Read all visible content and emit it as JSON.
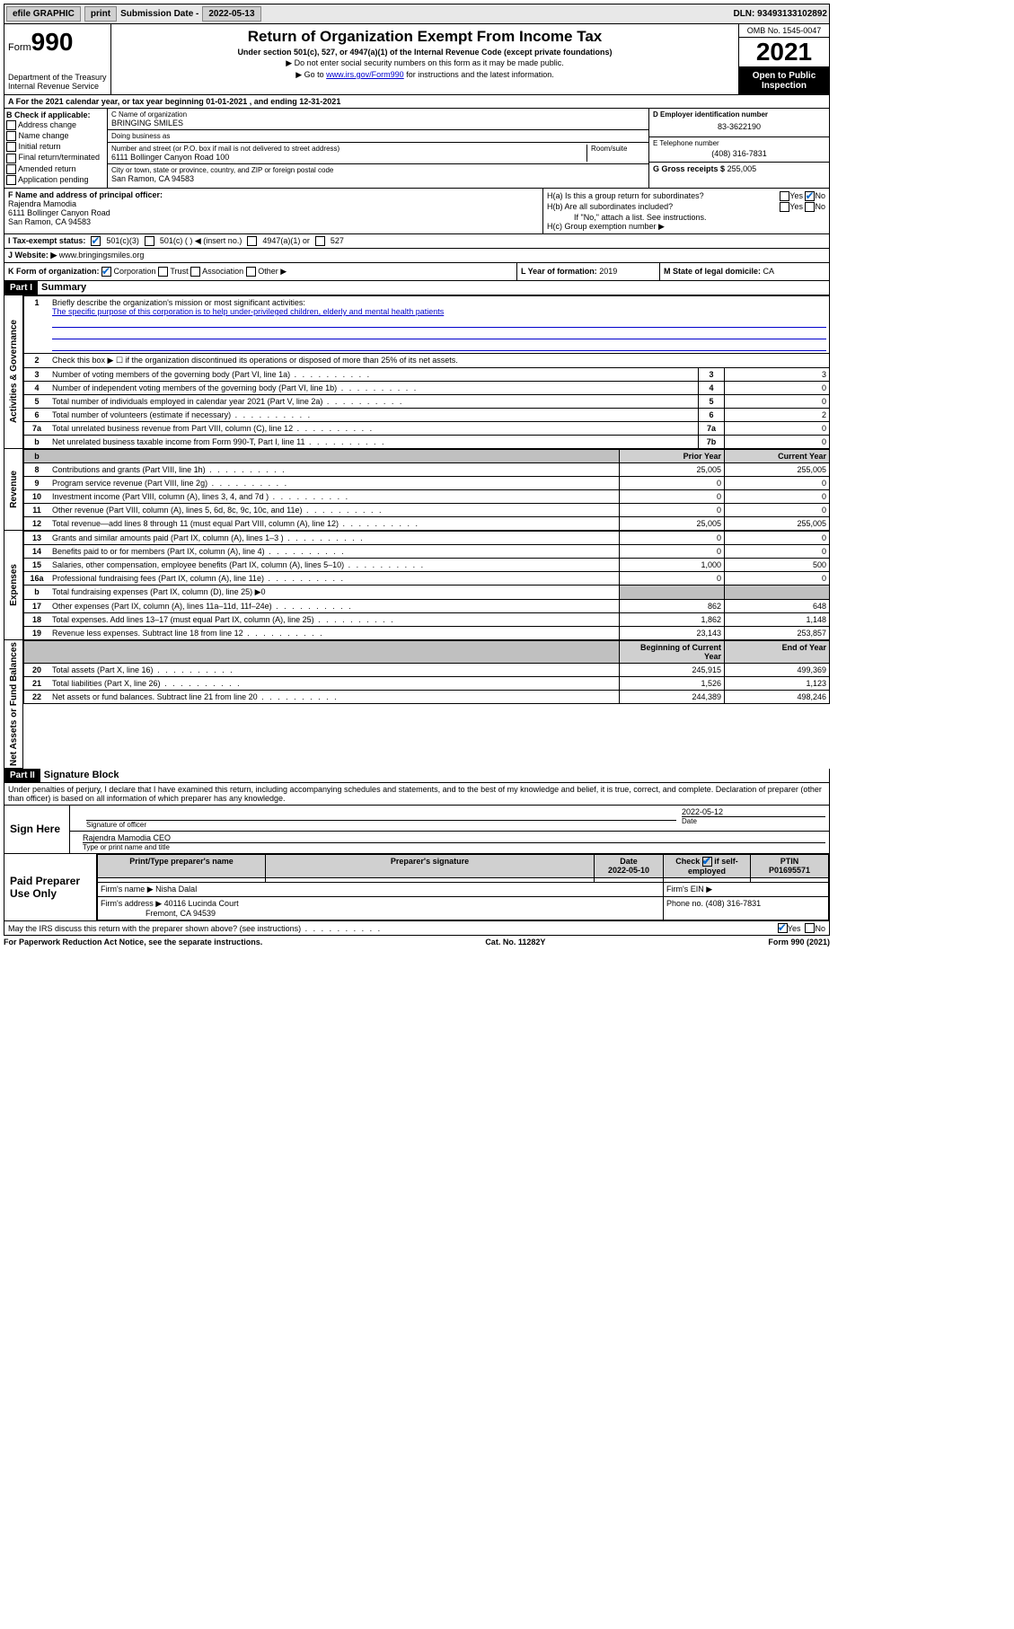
{
  "topbar": {
    "efile": "efile GRAPHIC",
    "print": "print",
    "sub_label": "Submission Date - ",
    "sub_date": "2022-05-13",
    "dln": "DLN: 93493133102892"
  },
  "header": {
    "form_word": "Form",
    "form_num": "990",
    "dept": "Department of the Treasury",
    "irs": "Internal Revenue Service",
    "title": "Return of Organization Exempt From Income Tax",
    "sub1": "Under section 501(c), 527, or 4947(a)(1) of the Internal Revenue Code (except private foundations)",
    "sub2": "▶ Do not enter social security numbers on this form as it may be made public.",
    "sub3_pre": "▶ Go to ",
    "sub3_link": "www.irs.gov/Form990",
    "sub3_post": " for instructions and the latest information.",
    "omb": "OMB No. 1545-0047",
    "year": "2021",
    "open": "Open to Public Inspection"
  },
  "row_a": "A For the 2021 calendar year, or tax year beginning 01-01-2021   , and ending 12-31-2021",
  "b": {
    "title": "B Check if applicable:",
    "opts": [
      "Address change",
      "Name change",
      "Initial return",
      "Final return/terminated",
      "Amended return",
      "Application pending"
    ]
  },
  "c": {
    "name_label": "C Name of organization",
    "name": "BRINGING SMILES",
    "dba_label": "Doing business as",
    "dba": "",
    "street_label": "Number and street (or P.O. box if mail is not delivered to street address)",
    "room_label": "Room/suite",
    "street": "6111 Bollinger Canyon Road 100",
    "city_label": "City or town, state or province, country, and ZIP or foreign postal code",
    "city": "San Ramon, CA  94583"
  },
  "d": {
    "label": "D Employer identification number",
    "val": "83-3622190"
  },
  "e": {
    "label": "E Telephone number",
    "val": "(408) 316-7831"
  },
  "g": {
    "label": "G Gross receipts $",
    "val": "255,005"
  },
  "f": {
    "label": "F Name and address of principal officer:",
    "name": "Rajendra Mamodia",
    "addr1": "6111 Bollinger Canyon Road",
    "addr2": "San Ramon, CA  94583"
  },
  "h": {
    "a": "H(a)  Is this a group return for subordinates?",
    "b": "H(b)  Are all subordinates included?",
    "b_note": "If \"No,\" attach a list. See instructions.",
    "c": "H(c)  Group exemption number ▶",
    "yes": "Yes",
    "no": "No"
  },
  "i": {
    "label": "I   Tax-exempt status:",
    "o1": "501(c)(3)",
    "o2": "501(c) (  ) ◀ (insert no.)",
    "o3": "4947(a)(1) or",
    "o4": "527"
  },
  "j": {
    "label": "J   Website: ▶",
    "val": "www.bringingsmiles.org"
  },
  "k": {
    "label": "K Form of organization:",
    "o1": "Corporation",
    "o2": "Trust",
    "o3": "Association",
    "o4": "Other ▶"
  },
  "l": {
    "label": "L Year of formation:",
    "val": "2019"
  },
  "m": {
    "label": "M State of legal domicile:",
    "val": "CA"
  },
  "part1": {
    "hdr": "Part I",
    "title": "Summary"
  },
  "sideA": "Activities & Governance",
  "sideR": "Revenue",
  "sideE": "Expenses",
  "sideN": "Net Assets or Fund Balances",
  "s1": {
    "l1_label": "Briefly describe the organization's mission or most significant activities:",
    "l1_text": "The specific purpose of this corporation is to help under-privileged children, elderly and mental health patients",
    "l2": "Check this box ▶ ☐  if the organization discontinued its operations or disposed of more than 25% of its net assets.",
    "rows": [
      {
        "n": "3",
        "d": "Number of voting members of the governing body (Part VI, line 1a)",
        "ln": "3",
        "v": "3"
      },
      {
        "n": "4",
        "d": "Number of independent voting members of the governing body (Part VI, line 1b)",
        "ln": "4",
        "v": "0"
      },
      {
        "n": "5",
        "d": "Total number of individuals employed in calendar year 2021 (Part V, line 2a)",
        "ln": "5",
        "v": "0"
      },
      {
        "n": "6",
        "d": "Total number of volunteers (estimate if necessary)",
        "ln": "6",
        "v": "2"
      },
      {
        "n": "7a",
        "d": "Total unrelated business revenue from Part VIII, column (C), line 12",
        "ln": "7a",
        "v": "0"
      },
      {
        "n": "b",
        "d": "Net unrelated business taxable income from Form 990-T, Part I, line 11",
        "ln": "7b",
        "v": "0"
      }
    ]
  },
  "s2": {
    "hdr_prior": "Prior Year",
    "hdr_curr": "Current Year",
    "rows": [
      {
        "n": "8",
        "d": "Contributions and grants (Part VIII, line 1h)",
        "p": "25,005",
        "c": "255,005"
      },
      {
        "n": "9",
        "d": "Program service revenue (Part VIII, line 2g)",
        "p": "0",
        "c": "0"
      },
      {
        "n": "10",
        "d": "Investment income (Part VIII, column (A), lines 3, 4, and 7d )",
        "p": "0",
        "c": "0"
      },
      {
        "n": "11",
        "d": "Other revenue (Part VIII, column (A), lines 5, 6d, 8c, 9c, 10c, and 11e)",
        "p": "0",
        "c": "0"
      },
      {
        "n": "12",
        "d": "Total revenue—add lines 8 through 11 (must equal Part VIII, column (A), line 12)",
        "p": "25,005",
        "c": "255,005"
      }
    ]
  },
  "s3": {
    "rows": [
      {
        "n": "13",
        "d": "Grants and similar amounts paid (Part IX, column (A), lines 1–3 )",
        "p": "0",
        "c": "0"
      },
      {
        "n": "14",
        "d": "Benefits paid to or for members (Part IX, column (A), line 4)",
        "p": "0",
        "c": "0"
      },
      {
        "n": "15",
        "d": "Salaries, other compensation, employee benefits (Part IX, column (A), lines 5–10)",
        "p": "1,000",
        "c": "500"
      },
      {
        "n": "16a",
        "d": "Professional fundraising fees (Part IX, column (A), line 11e)",
        "p": "0",
        "c": "0"
      }
    ],
    "l16b_d": "Total fundraising expenses (Part IX, column (D), line 25) ▶0",
    "rows2": [
      {
        "n": "17",
        "d": "Other expenses (Part IX, column (A), lines 11a–11d, 11f–24e)",
        "p": "862",
        "c": "648"
      },
      {
        "n": "18",
        "d": "Total expenses. Add lines 13–17 (must equal Part IX, column (A), line 25)",
        "p": "1,862",
        "c": "1,148"
      },
      {
        "n": "19",
        "d": "Revenue less expenses. Subtract line 18 from line 12",
        "p": "23,143",
        "c": "253,857"
      }
    ]
  },
  "s4": {
    "hdr_beg": "Beginning of Current Year",
    "hdr_end": "End of Year",
    "rows": [
      {
        "n": "20",
        "d": "Total assets (Part X, line 16)",
        "p": "245,915",
        "c": "499,369"
      },
      {
        "n": "21",
        "d": "Total liabilities (Part X, line 26)",
        "p": "1,526",
        "c": "1,123"
      },
      {
        "n": "22",
        "d": "Net assets or fund balances. Subtract line 21 from line 20",
        "p": "244,389",
        "c": "498,246"
      }
    ]
  },
  "part2": {
    "hdr": "Part II",
    "title": "Signature Block"
  },
  "penalty": "Under penalties of perjury, I declare that I have examined this return, including accompanying schedules and statements, and to the best of my knowledge and belief, it is true, correct, and complete. Declaration of preparer (other than officer) is based on all information of which preparer has any knowledge.",
  "sign": {
    "here": "Sign Here",
    "sig_label": "Signature of officer",
    "date_label": "Date",
    "date": "2022-05-12",
    "name": "Rajendra Mamodia CEO",
    "name_label": "Type or print name and title"
  },
  "paid": {
    "label": "Paid Preparer Use Only",
    "h1": "Print/Type preparer's name",
    "h2": "Preparer's signature",
    "h3": "Date",
    "h4": "Check ☑ if self-employed",
    "h5": "PTIN",
    "date": "2022-05-10",
    "ptin": "P01695571",
    "firm_label": "Firm's name   ▶",
    "firm": "Nisha Dalal",
    "ein_label": "Firm's EIN ▶",
    "addr_label": "Firm's address ▶",
    "addr1": "40116 Lucinda Court",
    "addr2": "Fremont, CA  94539",
    "phone_label": "Phone no.",
    "phone": "(408) 316-7831"
  },
  "discuss": {
    "q": "May the IRS discuss this return with the preparer shown above? (see instructions)",
    "yes": "Yes",
    "no": "No"
  },
  "footer": {
    "left": "For Paperwork Reduction Act Notice, see the separate instructions.",
    "mid": "Cat. No. 11282Y",
    "right": "Form 990 (2021)"
  }
}
